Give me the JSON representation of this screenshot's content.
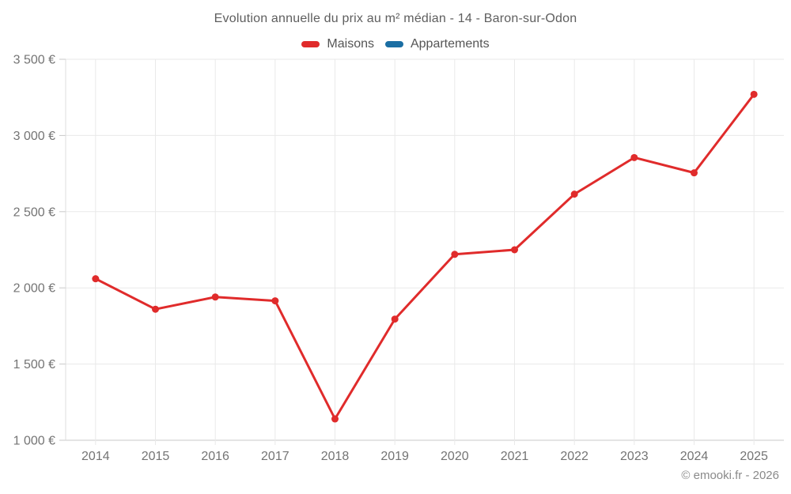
{
  "chart": {
    "title": "Evolution annuelle du prix au m² médian - 14 - Baron-sur-Odon"
  },
  "legend": {
    "items": [
      {
        "label": "Maisons",
        "color": "#e02b2b"
      },
      {
        "label": "Appartements",
        "color": "#1b6ea3"
      }
    ]
  },
  "chart_data": {
    "type": "line",
    "title": "Evolution annuelle du prix au m² médian - 14 - Baron-sur-Odon",
    "categories": [
      "2014",
      "2015",
      "2016",
      "2017",
      "2018",
      "2019",
      "2020",
      "2021",
      "2022",
      "2023",
      "2024",
      "2025"
    ],
    "series": [
      {
        "name": "Maisons",
        "color": "#e02b2b",
        "values": [
          2060,
          1860,
          1940,
          1915,
          1140,
          1795,
          2220,
          2250,
          2615,
          2855,
          2755,
          3270
        ]
      },
      {
        "name": "Appartements",
        "color": "#1b6ea3",
        "values": []
      }
    ],
    "xlabel": "",
    "ylabel": "",
    "ylim": [
      1000,
      3500
    ],
    "y_tick_step": 500,
    "y_tick_labels": [
      "1 000 €",
      "1 500 €",
      "2 000 €",
      "2 500 €",
      "3 000 €",
      "3 500 €"
    ],
    "grid": true,
    "legend_position": "top",
    "colors": {
      "grid_line": "#e9e9e9",
      "axis_line": "#c9c9c9",
      "plot_border": "#dcdcdc",
      "tick": "#c9c9c9",
      "axis_text": "#747474"
    }
  },
  "footer": {
    "copyright": "© emooki.fr - 2026"
  }
}
